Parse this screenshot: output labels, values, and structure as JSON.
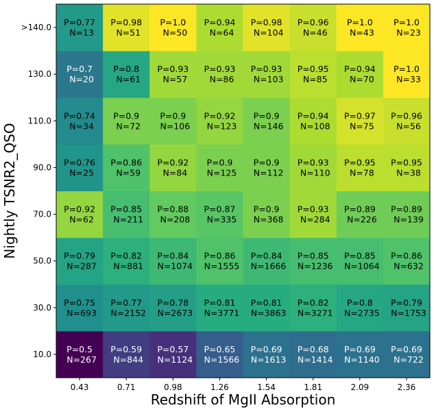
{
  "chart_data": {
    "type": "heatmap",
    "title": "",
    "xlabel": "Redshift of MgII Absorption",
    "ylabel": "Nightly TSNR2_QSO",
    "x_categories": [
      "0.43",
      "0.71",
      "0.98",
      "1.26",
      "1.54",
      "1.81",
      "2.09",
      "2.36"
    ],
    "y_categories": [
      "10.0",
      "30.0",
      "50.0",
      "70.0",
      "90.0",
      "110.0",
      "130.0",
      ">140.0"
    ],
    "colormap": "viridis",
    "color_range": [
      0.5,
      1.0
    ],
    "rows": [
      {
        "y": "10.0",
        "P": [
          "0.5",
          "0.59",
          "0.57",
          "0.65",
          "0.69",
          "0.68",
          "0.69",
          "0.69"
        ],
        "N": [
          "267",
          "844",
          "1124",
          "1566",
          "1613",
          "1414",
          "1140",
          "722"
        ]
      },
      {
        "y": "30.0",
        "P": [
          "0.75",
          "0.77",
          "0.78",
          "0.81",
          "0.81",
          "0.82",
          "0.8",
          "0.79"
        ],
        "N": [
          "693",
          "2152",
          "2673",
          "3771",
          "3863",
          "3271",
          "2735",
          "1753"
        ]
      },
      {
        "y": "50.0",
        "P": [
          "0.79",
          "0.82",
          "0.84",
          "0.86",
          "0.84",
          "0.85",
          "0.85",
          "0.86"
        ],
        "N": [
          "287",
          "881",
          "1074",
          "1555",
          "1666",
          "1236",
          "1064",
          "632"
        ]
      },
      {
        "y": "70.0",
        "P": [
          "0.92",
          "0.85",
          "0.88",
          "0.87",
          "0.9",
          "0.93",
          "0.89",
          "0.89"
        ],
        "N": [
          "62",
          "211",
          "208",
          "335",
          "368",
          "284",
          "226",
          "139"
        ]
      },
      {
        "y": "90.0",
        "P": [
          "0.76",
          "0.86",
          "0.92",
          "0.9",
          "0.9",
          "0.93",
          "0.95",
          "0.95"
        ],
        "N": [
          "25",
          "59",
          "84",
          "125",
          "112",
          "110",
          "78",
          "38"
        ]
      },
      {
        "y": "110.0",
        "P": [
          "0.74",
          "0.9",
          "0.9",
          "0.92",
          "0.9",
          "0.94",
          "0.97",
          "0.96"
        ],
        "N": [
          "34",
          "72",
          "106",
          "123",
          "146",
          "108",
          "75",
          "56"
        ]
      },
      {
        "y": "130.0",
        "P": [
          "0.7",
          "0.8",
          "0.93",
          "0.93",
          "0.93",
          "0.95",
          "0.94",
          "1.0"
        ],
        "N": [
          "20",
          "61",
          "57",
          "86",
          "103",
          "85",
          "70",
          "33"
        ]
      },
      {
        "y": ">140.0",
        "P": [
          "0.77",
          "0.98",
          "1.0",
          "0.94",
          "0.98",
          "0.96",
          "1.0",
          "1.0"
        ],
        "N": [
          "13",
          "51",
          "50",
          "64",
          "104",
          "46",
          "43",
          "23"
        ]
      }
    ]
  }
}
